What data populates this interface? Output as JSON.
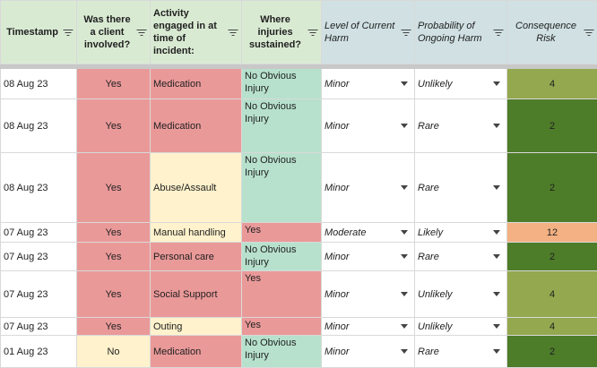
{
  "headers": {
    "timestamp": "Timestamp",
    "client": "Was there a client involved?",
    "activity": "Activity engaged in at time of incident:",
    "injuries": "Where injuries sustained?",
    "current_harm": "Level of Current Harm",
    "ongoing_harm": "Probability of Ongoing Harm",
    "risk": "Consequence Risk"
  },
  "colors": {
    "header_green": "#d9ead3",
    "header_blue": "#d0e0e3",
    "red": "#ea9999",
    "yellow": "#fff2cc",
    "mint": "#b7e1cd",
    "risk_light_green": "#93a84f",
    "risk_dark_green": "#4e7d2a",
    "risk_orange": "#f4b183"
  },
  "rows": [
    {
      "timestamp": "08 Aug 23",
      "client": "Yes",
      "activity": "Medication",
      "injuries": "No Obvious Injury",
      "current_harm": "Minor",
      "ongoing_harm": "Unlikely",
      "risk": "4"
    },
    {
      "timestamp": "08 Aug 23",
      "client": "Yes",
      "activity": "Medication",
      "injuries": "No Obvious Injury",
      "current_harm": "Minor",
      "ongoing_harm": "Rare",
      "risk": "2"
    },
    {
      "timestamp": "08 Aug 23",
      "client": "Yes",
      "activity": "Abuse/Assault",
      "injuries": "No Obvious Injury",
      "current_harm": "Minor",
      "ongoing_harm": "Rare",
      "risk": "2"
    },
    {
      "timestamp": "07 Aug 23",
      "client": "Yes",
      "activity": "Manual handling",
      "injuries": "Yes",
      "current_harm": "Moderate",
      "ongoing_harm": "Likely",
      "risk": "12"
    },
    {
      "timestamp": "07 Aug 23",
      "client": "Yes",
      "activity": "Personal care",
      "injuries": "No Obvious Injury",
      "current_harm": "Minor",
      "ongoing_harm": "Rare",
      "risk": "2"
    },
    {
      "timestamp": "07 Aug 23",
      "client": "Yes",
      "activity": "Social Support",
      "injuries": "Yes",
      "current_harm": "Minor",
      "ongoing_harm": "Unlikely",
      "risk": "4"
    },
    {
      "timestamp": "07 Aug 23",
      "client": "Yes",
      "activity": "Outing",
      "injuries": "Yes",
      "current_harm": "Minor",
      "ongoing_harm": "Unlikely",
      "risk": "4"
    },
    {
      "timestamp": "01 Aug 23",
      "client": "No",
      "activity": "Medication",
      "injuries": "No Obvious Injury",
      "current_harm": "Minor",
      "ongoing_harm": "Rare",
      "risk": "2"
    }
  ]
}
